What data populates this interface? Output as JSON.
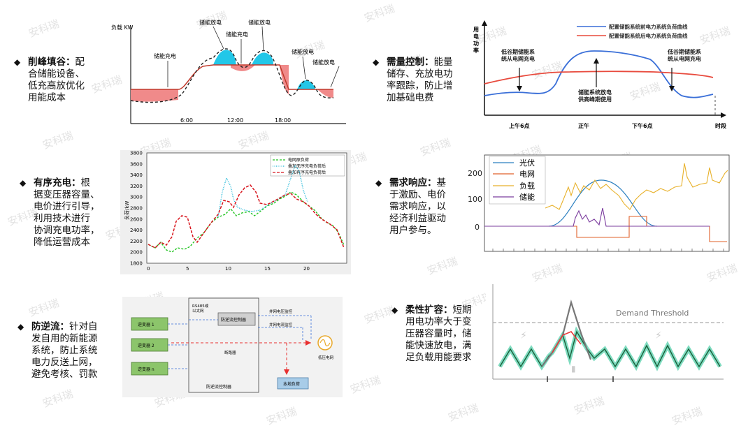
{
  "watermark": "安科瑞",
  "items": [
    {
      "title": "削峰填谷：",
      "lines": [
        "配",
        "合储能设备、",
        "低充高放优化",
        "用能成本"
      ]
    },
    {
      "title": "需量控制：",
      "lines": [
        "能量",
        "储存、充放电功",
        "率跟踪，防止增",
        "加基础电费"
      ]
    },
    {
      "title": "有序充电：",
      "lines": [
        "根",
        "据变压器容量、",
        "电价进行引导，",
        "利用技术进行",
        "协调充电功率，",
        "降低运营成本"
      ]
    },
    {
      "title": "需求响应：",
      "lines": [
        "基",
        "于激励、电价",
        "需求响应，以",
        "经济利益驱动",
        "用户参与。"
      ]
    },
    {
      "title": "防逆流：",
      "lines": [
        "针对自",
        "发自用的新能源",
        "系统，防止系统",
        "电力反送上网，",
        "避免考核、罚款"
      ]
    },
    {
      "title": "柔性扩容：",
      "lines": [
        "短期",
        "用电功率大于变",
        "压器容量时，储",
        "能快速放电，满",
        "足负载用能要求"
      ]
    }
  ],
  "peak_chart": {
    "ylabel": "负载\nKW",
    "labels": {
      "charge1": "储能充电",
      "discharge1": "储能放电",
      "charge2": "储能充电",
      "discharge2": "储能放电",
      "discharge3": "储能放电",
      "discharge4": "储能放电"
    },
    "ticks": [
      "6:00",
      "12:00",
      "18:00"
    ]
  },
  "demand_chart": {
    "ylabel": "用\n电\n功\n率",
    "legend": [
      "配置储能系统前电力系统负荷曲线",
      "配置储能系统后电力系统负荷曲线"
    ],
    "ann_left": "低谷期储能系\n统从电网充电",
    "ann_mid": "储能系统放电\n供高峰期使用",
    "ann_right": "低谷期储能系\n统从电网充电",
    "ticks": [
      "上午6点",
      "正午",
      "下午6点",
      "时段"
    ]
  },
  "charging_chart": {
    "ylabel": "负荷/kW",
    "legend": [
      "电网原负荷",
      "叠加无序充电负荷后",
      "叠加有序充电负荷后"
    ],
    "yticks": [
      "1800",
      "2000",
      "2200",
      "2400",
      "2600",
      "2800",
      "3000",
      "3200",
      "3400",
      "3600",
      "3800"
    ],
    "xticks": [
      "0",
      "5",
      "10",
      "15",
      "20"
    ]
  },
  "response_chart": {
    "legend": [
      "光伏",
      "电网",
      "负载",
      "储能"
    ],
    "yticks": [
      "0",
      "100",
      "200"
    ]
  },
  "antireflux_chart": {
    "inverters": [
      "逆变器 1",
      "逆变器 2",
      "逆变器 n"
    ],
    "rs485": "RS485或\n以太网",
    "controller": "防逆流控制器",
    "vmon": "并网电压监控",
    "imon": "并网电流监控",
    "breaker": "断路器",
    "grid": "低压电网",
    "load": "本地负荷",
    "footer": "防逆流控制器"
  },
  "flex_chart": {
    "threshold": "Demand Threshold"
  }
}
